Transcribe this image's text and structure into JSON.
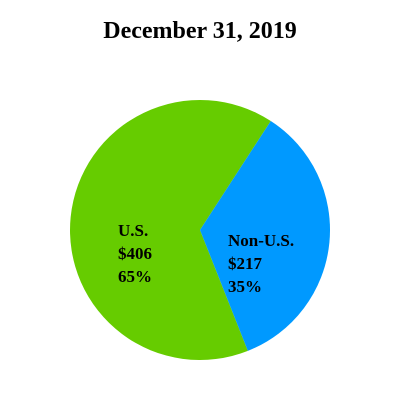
{
  "chart_data": {
    "type": "pie",
    "title": "December 31, 2019",
    "slices": [
      {
        "label": "U.S.",
        "value_text": "$406",
        "percent_text": "65%",
        "value": 406,
        "color": "#66cc00"
      },
      {
        "label": "Non-U.S.",
        "value_text": "$217",
        "percent_text": "35%",
        "value": 217,
        "color": "#0099ff"
      }
    ],
    "legend": "none"
  }
}
